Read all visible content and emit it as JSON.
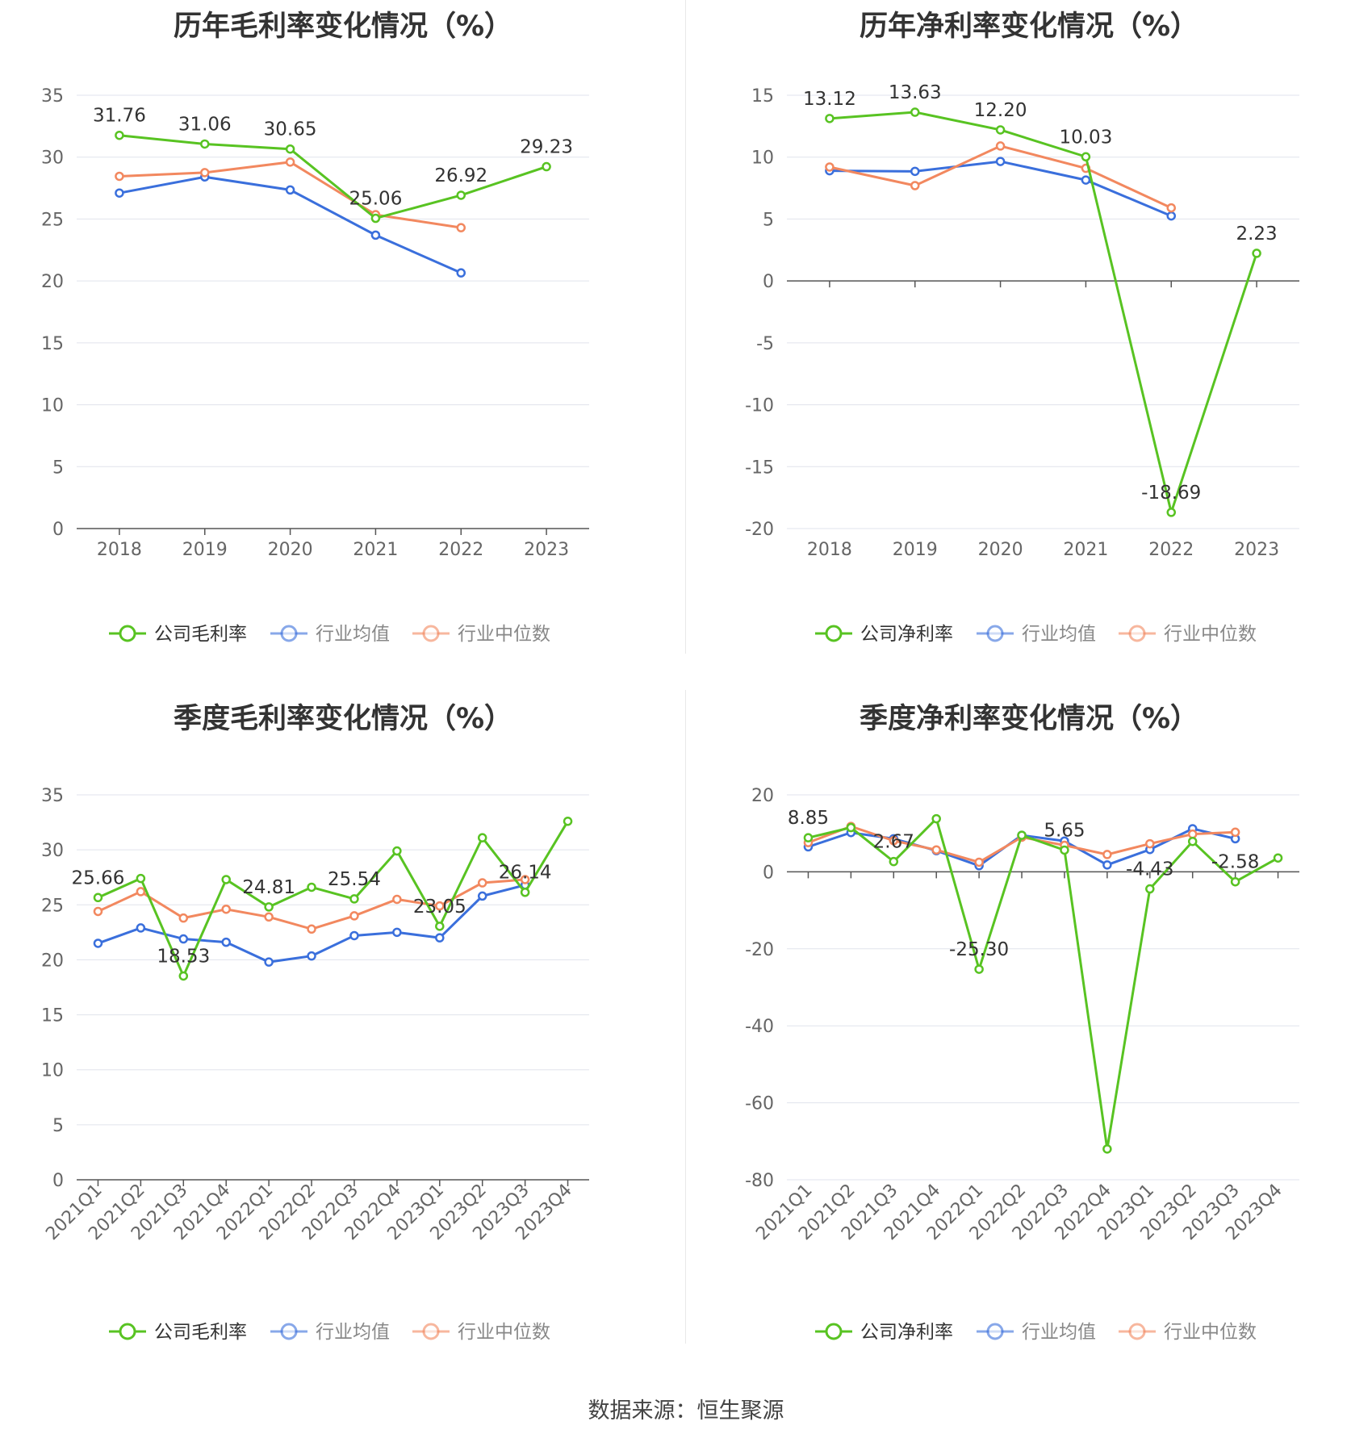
{
  "colors": {
    "company": "#58c322",
    "average": "#3a6fdc",
    "median": "#f2885f"
  },
  "legend": {
    "annual_gross": [
      "公司毛利率",
      "行业均值",
      "行业中位数"
    ],
    "annual_net": [
      "公司净利率",
      "行业均值",
      "行业中位数"
    ],
    "quarter_gross": [
      "公司毛利率",
      "行业均值",
      "行业中位数"
    ],
    "quarter_net": [
      "公司净利率",
      "行业均值",
      "行业中位数"
    ]
  },
  "source": "数据来源：恒生聚源",
  "chart_data": [
    {
      "id": "annual_gross",
      "type": "line",
      "title": "历年毛利率变化情况（%）",
      "categories": [
        "2018",
        "2019",
        "2020",
        "2021",
        "2022",
        "2023"
      ],
      "ylim": [
        0,
        35
      ],
      "yticks": [
        0,
        5,
        10,
        15,
        20,
        25,
        30,
        35
      ],
      "grid": true,
      "legend_position": "bottom",
      "series": [
        {
          "name": "公司毛利率",
          "role": "company",
          "values": [
            31.76,
            31.06,
            30.65,
            25.06,
            26.92,
            29.23
          ],
          "labels": [
            "31.76",
            "31.06",
            "30.65",
            "25.06",
            "26.92",
            "29.23"
          ]
        },
        {
          "name": "行业均值",
          "role": "average",
          "values": [
            27.1,
            28.4,
            27.35,
            23.7,
            20.65,
            null
          ]
        },
        {
          "name": "行业中位数",
          "role": "median",
          "values": [
            28.45,
            28.75,
            29.6,
            25.35,
            24.3,
            null
          ]
        }
      ]
    },
    {
      "id": "annual_net",
      "type": "line",
      "title": "历年净利率变化情况（%）",
      "categories": [
        "2018",
        "2019",
        "2020",
        "2021",
        "2022",
        "2023"
      ],
      "ylim": [
        -20,
        15
      ],
      "yticks": [
        -20,
        -15,
        -10,
        -5,
        0,
        5,
        10,
        15
      ],
      "grid": true,
      "legend_position": "bottom",
      "series": [
        {
          "name": "公司净利率",
          "role": "company",
          "values": [
            13.12,
            13.63,
            12.2,
            10.03,
            -18.69,
            2.23
          ],
          "labels": [
            "13.12",
            "13.63",
            "12.20",
            "10.03",
            "-18.69",
            "2.23"
          ]
        },
        {
          "name": "行业均值",
          "role": "average",
          "values": [
            8.9,
            8.85,
            9.65,
            8.15,
            5.25,
            null
          ]
        },
        {
          "name": "行业中位数",
          "role": "median",
          "values": [
            9.2,
            7.7,
            10.9,
            9.1,
            5.9,
            null
          ]
        }
      ]
    },
    {
      "id": "quarter_gross",
      "type": "line",
      "title": "季度毛利率变化情况（%）",
      "categories": [
        "2021Q1",
        "2021Q2",
        "2021Q3",
        "2021Q4",
        "2022Q1",
        "2022Q2",
        "2022Q3",
        "2022Q4",
        "2023Q1",
        "2023Q2",
        "2023Q3",
        "2023Q4"
      ],
      "ylim": [
        0,
        35
      ],
      "yticks": [
        0,
        5,
        10,
        15,
        20,
        25,
        30,
        35
      ],
      "grid": true,
      "legend_position": "bottom",
      "series": [
        {
          "name": "公司毛利率",
          "role": "company",
          "values": [
            25.66,
            27.4,
            18.53,
            27.3,
            24.81,
            26.6,
            25.54,
            29.9,
            23.05,
            31.1,
            26.14,
            32.6
          ],
          "labels": [
            "25.66",
            "",
            "18.53",
            "",
            "24.81",
            "",
            "25.54",
            "",
            "23.05",
            "",
            "26.14",
            ""
          ]
        },
        {
          "name": "行业均值",
          "role": "average",
          "values": [
            21.5,
            22.9,
            21.9,
            21.6,
            19.8,
            20.35,
            22.2,
            22.5,
            22.0,
            25.8,
            26.8,
            null
          ]
        },
        {
          "name": "行业中位数",
          "role": "median",
          "values": [
            24.4,
            26.2,
            23.8,
            24.6,
            23.9,
            22.8,
            24.0,
            25.5,
            24.9,
            27.0,
            27.3,
            null
          ]
        }
      ]
    },
    {
      "id": "quarter_net",
      "type": "line",
      "title": "季度净利率变化情况（%）",
      "categories": [
        "2021Q1",
        "2021Q2",
        "2021Q3",
        "2021Q4",
        "2022Q1",
        "2022Q2",
        "2022Q3",
        "2022Q4",
        "2023Q1",
        "2023Q2",
        "2023Q3",
        "2023Q4"
      ],
      "ylim": [
        -80,
        20
      ],
      "yticks": [
        -80,
        -60,
        -40,
        -20,
        0,
        20
      ],
      "grid": true,
      "legend_position": "bottom",
      "series": [
        {
          "name": "公司净利率",
          "role": "company",
          "values": [
            8.85,
            11.5,
            2.67,
            13.8,
            -25.3,
            9.5,
            5.65,
            -72.0,
            -4.43,
            7.9,
            -2.58,
            3.6
          ],
          "labels": [
            "8.85",
            "",
            "2.67",
            "",
            "-25.30",
            "",
            "5.65",
            "",
            "-4.43",
            "",
            "-2.58",
            ""
          ]
        },
        {
          "name": "行业均值",
          "role": "average",
          "values": [
            6.5,
            10.2,
            8.6,
            5.5,
            1.6,
            9.5,
            8.0,
            1.8,
            5.8,
            11.2,
            8.6,
            null
          ]
        },
        {
          "name": "行业中位数",
          "role": "median",
          "values": [
            7.6,
            11.8,
            8.1,
            5.7,
            2.5,
            9.0,
            6.9,
            4.5,
            7.3,
            9.8,
            10.3,
            null
          ]
        }
      ]
    }
  ]
}
